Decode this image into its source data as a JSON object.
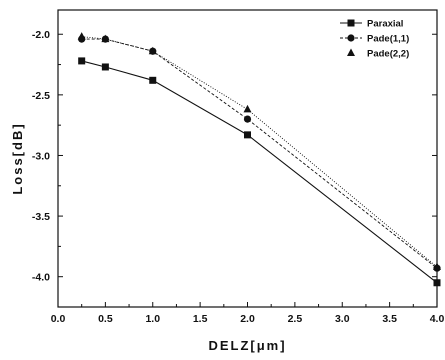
{
  "chart_data": {
    "type": "line",
    "xlabel": "DELZ[μm]",
    "ylabel": "Loss[dB]",
    "xlim": [
      0.0,
      4.0
    ],
    "ylim": [
      -4.25,
      -1.8
    ],
    "x_ticks": [
      "0.0",
      "0.5",
      "1.0",
      "1.5",
      "2.0",
      "2.5",
      "3.0",
      "3.5",
      "4.0"
    ],
    "y_ticks": [
      "-2.0",
      "-2.5",
      "-3.0",
      "-3.5",
      "-4.0"
    ],
    "x_tick_values": [
      0.0,
      0.5,
      1.0,
      1.5,
      2.0,
      2.5,
      3.0,
      3.5,
      4.0
    ],
    "y_tick_values": [
      -2.0,
      -2.5,
      -3.0,
      -3.5,
      -4.0
    ],
    "legend_position": "top-right",
    "series": [
      {
        "name": "Paraxial",
        "marker": "square",
        "line": "solid",
        "x": [
          0.25,
          0.5,
          1.0,
          2.0,
          4.0
        ],
        "y": [
          -2.22,
          -2.27,
          -2.38,
          -2.83,
          -4.05
        ]
      },
      {
        "name": "Pade(1,1)",
        "marker": "circle",
        "line": "dashed",
        "x": [
          0.25,
          0.5,
          1.0,
          2.0,
          4.0
        ],
        "y": [
          -2.04,
          -2.04,
          -2.14,
          -2.7,
          -3.93
        ]
      },
      {
        "name": "Pade(2,2)",
        "marker": "triangle",
        "line": "dotted",
        "x": [
          0.25,
          0.5,
          1.0,
          2.0,
          4.0
        ],
        "y": [
          -2.02,
          -2.04,
          -2.14,
          -2.62,
          -3.92
        ]
      }
    ]
  }
}
